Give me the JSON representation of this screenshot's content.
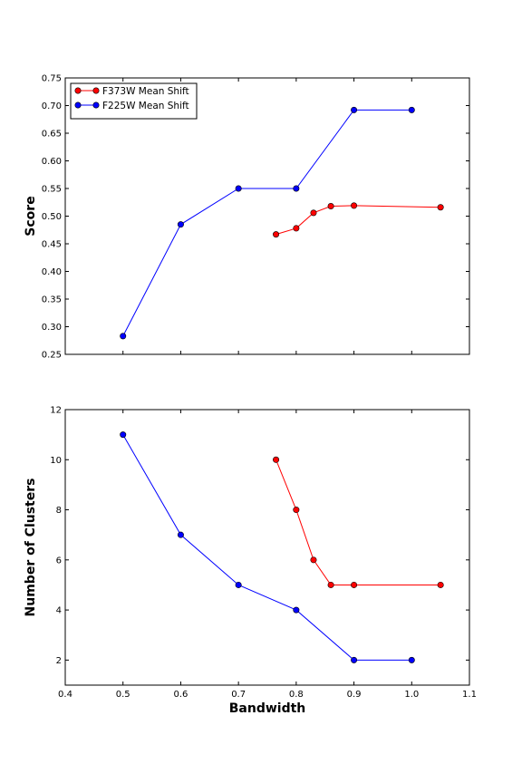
{
  "chart_data": [
    {
      "type": "line",
      "title": "",
      "xlabel": "",
      "ylabel": "Score",
      "xlim": [
        0.4,
        1.1
      ],
      "ylim": [
        0.25,
        0.75
      ],
      "xticks": [
        "0.4",
        "0.5",
        "0.6",
        "0.7",
        "0.8",
        "0.9",
        "1.0",
        "1.1"
      ],
      "yticks": [
        "0.25",
        "0.30",
        "0.35",
        "0.40",
        "0.45",
        "0.50",
        "0.55",
        "0.60",
        "0.65",
        "0.70",
        "0.75"
      ],
      "show_xtick_labels": false,
      "grid": false,
      "legend_position": "top-left",
      "series": [
        {
          "name": "F373W Mean Shift",
          "color": "#ff0000",
          "x": [
            0.765,
            0.8,
            0.83,
            0.86,
            0.9,
            1.05
          ],
          "y": [
            0.467,
            0.478,
            0.506,
            0.518,
            0.519,
            0.516
          ]
        },
        {
          "name": "F225W Mean Shift",
          "color": "#0000ff",
          "x": [
            0.5,
            0.6,
            0.7,
            0.8,
            0.9,
            1.0
          ],
          "y": [
            0.283,
            0.485,
            0.55,
            0.55,
            0.692,
            0.692
          ]
        }
      ]
    },
    {
      "type": "line",
      "title": "",
      "xlabel": "Bandwidth",
      "ylabel": "Number of Clusters",
      "xlim": [
        0.4,
        1.1
      ],
      "ylim": [
        1,
        12
      ],
      "xticks": [
        "0.4",
        "0.5",
        "0.6",
        "0.7",
        "0.8",
        "0.9",
        "1.0",
        "1.1"
      ],
      "yticks": [
        "2",
        "4",
        "6",
        "8",
        "10",
        "12"
      ],
      "show_xtick_labels": true,
      "grid": false,
      "legend_position": "none",
      "series": [
        {
          "name": "F373W Mean Shift",
          "color": "#ff0000",
          "x": [
            0.765,
            0.8,
            0.83,
            0.86,
            0.9,
            1.05
          ],
          "y": [
            10,
            8,
            6,
            5,
            5,
            5
          ]
        },
        {
          "name": "F225W Mean Shift",
          "color": "#0000ff",
          "x": [
            0.5,
            0.6,
            0.7,
            0.8,
            0.9,
            1.0
          ],
          "y": [
            11,
            7,
            5,
            4,
            2,
            2
          ]
        }
      ]
    }
  ]
}
